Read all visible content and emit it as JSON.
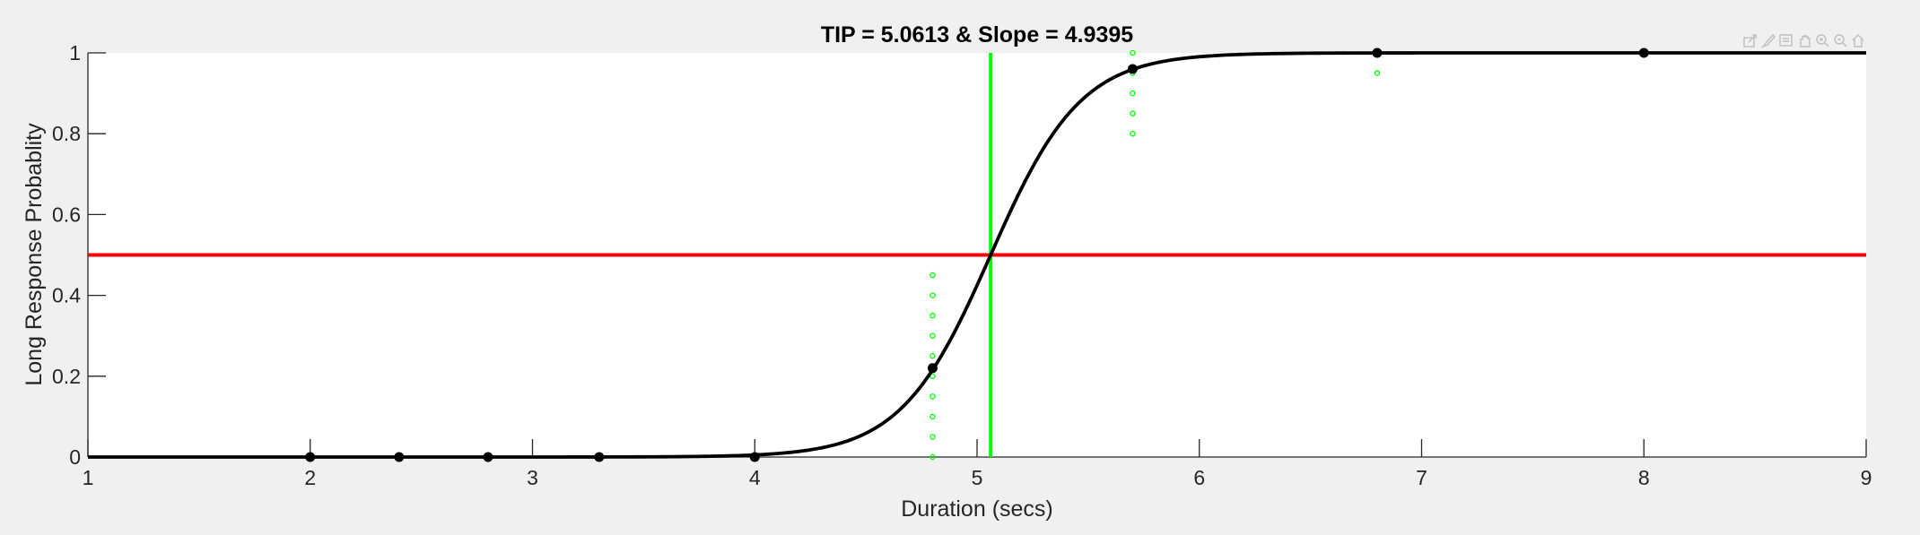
{
  "chart_data": {
    "type": "line",
    "title": "TIP = 5.0613 & Slope = 4.9395",
    "xlabel": "Duration (secs)",
    "ylabel": "Long Response Probablity",
    "xlim": [
      1,
      9
    ],
    "ylim": [
      0,
      1
    ],
    "x_ticks": [
      1,
      2,
      3,
      4,
      5,
      6,
      7,
      8,
      9
    ],
    "x_tick_labels": [
      "1",
      "2",
      "3",
      "4",
      "5",
      "6",
      "7",
      "8",
      "9"
    ],
    "y_ticks": [
      0,
      0.2,
      0.4,
      0.6,
      0.8,
      1
    ],
    "y_tick_labels": [
      "0",
      "0.2",
      "0.4",
      "0.6",
      "0.8",
      "1"
    ],
    "grid": false,
    "fit": {
      "model": "logistic",
      "tip": 5.0613,
      "slope": 4.9395,
      "color": "#000000"
    },
    "observed_points": {
      "x": [
        2.0,
        2.4,
        2.8,
        3.3,
        4.0,
        4.8,
        5.7,
        6.8,
        8.0
      ],
      "y": [
        0.0,
        0.0,
        0.0,
        0.0,
        0.0,
        0.22,
        0.96,
        1.0,
        1.0
      ],
      "color": "#000000"
    },
    "bootstrap_points": {
      "color": "#00ff00",
      "groups": [
        {
          "x": 4.8,
          "y": [
            0.0,
            0.05,
            0.1,
            0.15,
            0.2,
            0.25,
            0.3,
            0.35,
            0.4,
            0.45
          ]
        },
        {
          "x": 5.7,
          "y": [
            0.8,
            0.85,
            0.9,
            0.95,
            1.0
          ]
        },
        {
          "x": 6.8,
          "y": [
            0.95
          ]
        }
      ]
    },
    "reference_lines": {
      "threshold_y": 0.5,
      "threshold_color": "#ff0000",
      "tip_x": 5.0613,
      "tip_color": "#00ff00"
    }
  },
  "toolbar": {
    "icons": [
      "export-icon",
      "brush-icon",
      "datatip-icon",
      "pan-icon",
      "zoom-in-icon",
      "zoom-out-icon",
      "home-icon"
    ]
  }
}
